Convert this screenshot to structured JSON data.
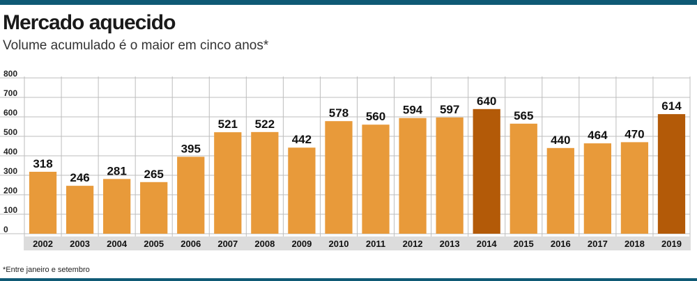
{
  "title": "Mercado aquecido",
  "subtitle": "Volume acumulado é o maior em cinco anos*",
  "footnote": "*Entre janeiro e setembro",
  "colors": {
    "bar": "#e89a3a",
    "highlight": "#b35a08",
    "grid": "#bdbdbd",
    "axis_band": "#dcdcdc",
    "rule": "#0f5a75"
  },
  "chart_data": {
    "type": "bar",
    "categories": [
      "2002",
      "2003",
      "2004",
      "2005",
      "2006",
      "2007",
      "2008",
      "2009",
      "2010",
      "2011",
      "2012",
      "2013",
      "2014",
      "2015",
      "2016",
      "2017",
      "2018",
      "2019"
    ],
    "values": [
      318,
      246,
      281,
      265,
      395,
      521,
      522,
      442,
      578,
      560,
      594,
      597,
      640,
      565,
      440,
      464,
      470,
      614
    ],
    "highlighted": [
      "2014",
      "2019"
    ],
    "ylim": [
      0,
      800
    ],
    "yticks": [
      0,
      100,
      200,
      300,
      400,
      500,
      600,
      700,
      800
    ],
    "grid": true,
    "data_labels": true,
    "title": "Mercado aquecido",
    "xlabel": "",
    "ylabel": ""
  }
}
